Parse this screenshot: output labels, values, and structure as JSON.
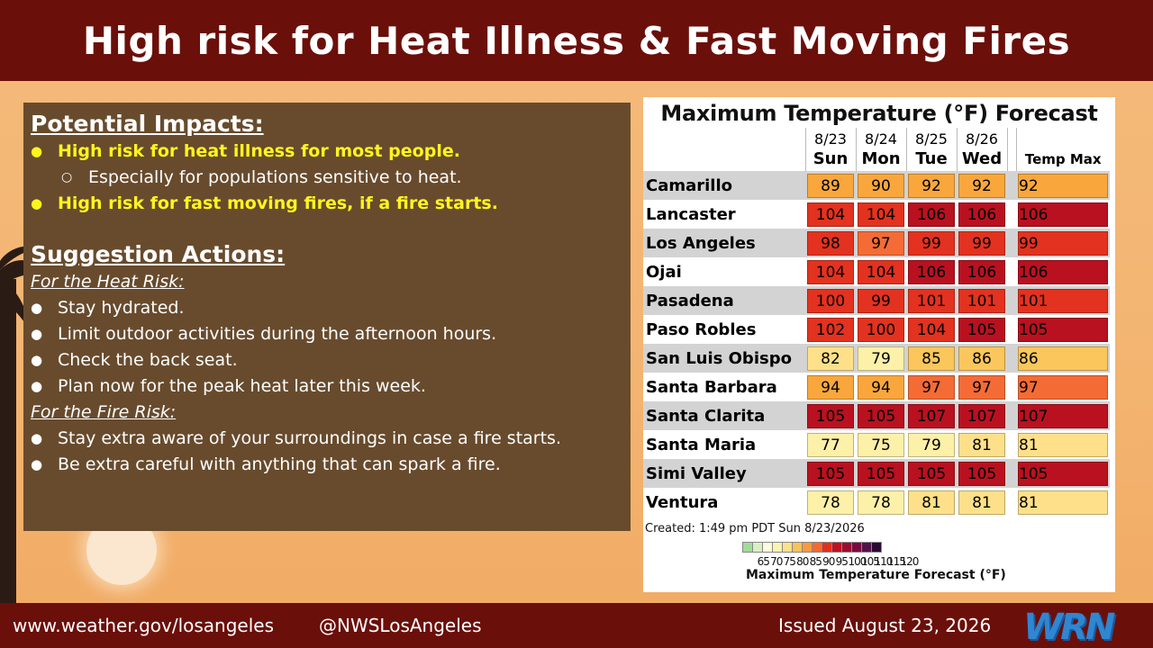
{
  "header": {
    "title": "High risk for Heat Illness & Fast Moving Fires"
  },
  "impacts": {
    "title": "Potential Impacts:",
    "items": [
      {
        "text": "High risk for heat illness for most people.",
        "highlight": true
      },
      {
        "text": "Especially for populations sensitive to heat.",
        "sub": true
      },
      {
        "text": "High risk for fast moving fires, if a fire starts.",
        "highlight": true
      }
    ]
  },
  "actions": {
    "title": "Suggestion Actions:",
    "heat_label": "For the Heat Risk:",
    "heat_items": [
      "Stay hydrated.",
      "Limit outdoor activities during the afternoon hours.",
      "Check the back seat.",
      "Plan now for the peak heat later this week."
    ],
    "fire_label": "For the Fire Risk:",
    "fire_items": [
      "Stay extra aware of your surroundings in case a fire starts.",
      "Be extra careful with anything that can spark a fire."
    ]
  },
  "forecast": {
    "title": "Maximum Temperature (°F) Forecast",
    "days": [
      {
        "date": "8/23",
        "day": "Sun"
      },
      {
        "date": "8/24",
        "day": "Mon"
      },
      {
        "date": "8/25",
        "day": "Tue"
      },
      {
        "date": "8/26",
        "day": "Wed"
      }
    ],
    "max_header": "Temp Max",
    "rows": [
      {
        "city": "Camarillo",
        "values": [
          89,
          90,
          92,
          92
        ],
        "max": 92
      },
      {
        "city": "Lancaster",
        "values": [
          104,
          104,
          106,
          106
        ],
        "max": 106
      },
      {
        "city": "Los Angeles",
        "values": [
          98,
          97,
          99,
          99
        ],
        "max": 99
      },
      {
        "city": "Ojai",
        "values": [
          104,
          104,
          106,
          106
        ],
        "max": 106
      },
      {
        "city": "Pasadena",
        "values": [
          100,
          99,
          101,
          101
        ],
        "max": 101
      },
      {
        "city": "Paso Robles",
        "values": [
          102,
          100,
          104,
          105
        ],
        "max": 105
      },
      {
        "city": "San Luis Obispo",
        "values": [
          82,
          79,
          85,
          86
        ],
        "max": 86
      },
      {
        "city": "Santa Barbara",
        "values": [
          94,
          94,
          97,
          97
        ],
        "max": 97
      },
      {
        "city": "Santa Clarita",
        "values": [
          105,
          105,
          107,
          107
        ],
        "max": 107
      },
      {
        "city": "Santa Maria",
        "values": [
          77,
          75,
          79,
          81
        ],
        "max": 81
      },
      {
        "city": "Simi Valley",
        "values": [
          105,
          105,
          105,
          105
        ],
        "max": 105
      },
      {
        "city": "Ventura",
        "values": [
          78,
          78,
          81,
          81
        ],
        "max": 81
      }
    ],
    "created": "Created: 1:49 pm PDT Sun 8/23/2026",
    "legend": {
      "title": "Maximum Temperature Forecast (°F)",
      "ticks": [
        "65",
        "70",
        "75",
        "80",
        "85",
        "90",
        "95",
        "100",
        "105",
        "110",
        "115",
        "120"
      ],
      "colors": [
        "#a3d99a",
        "#d6f0c4",
        "#fdfbd8",
        "#fdf2b0",
        "#fde28a",
        "#fbc25a",
        "#f89a3c",
        "#f36a2e",
        "#e0301f",
        "#c01220",
        "#9b0d2e",
        "#7a0a3e",
        "#55104a",
        "#2a0a33"
      ]
    },
    "scale": [
      {
        "min": 0,
        "color": "#fdf0a8"
      },
      {
        "min": 80,
        "color": "#fde089"
      },
      {
        "min": 85,
        "color": "#fbc65c"
      },
      {
        "min": 88,
        "color": "#f9a73c"
      },
      {
        "min": 95,
        "color": "#f46b35"
      },
      {
        "min": 98,
        "color": "#e3321f"
      },
      {
        "min": 105,
        "color": "#b9111f"
      }
    ]
  },
  "footer": {
    "website": "www.weather.gov/losangeles",
    "handle": "@NWSLosAngeles",
    "issued": "Issued August 23, 2026",
    "logo": "WRN"
  }
}
